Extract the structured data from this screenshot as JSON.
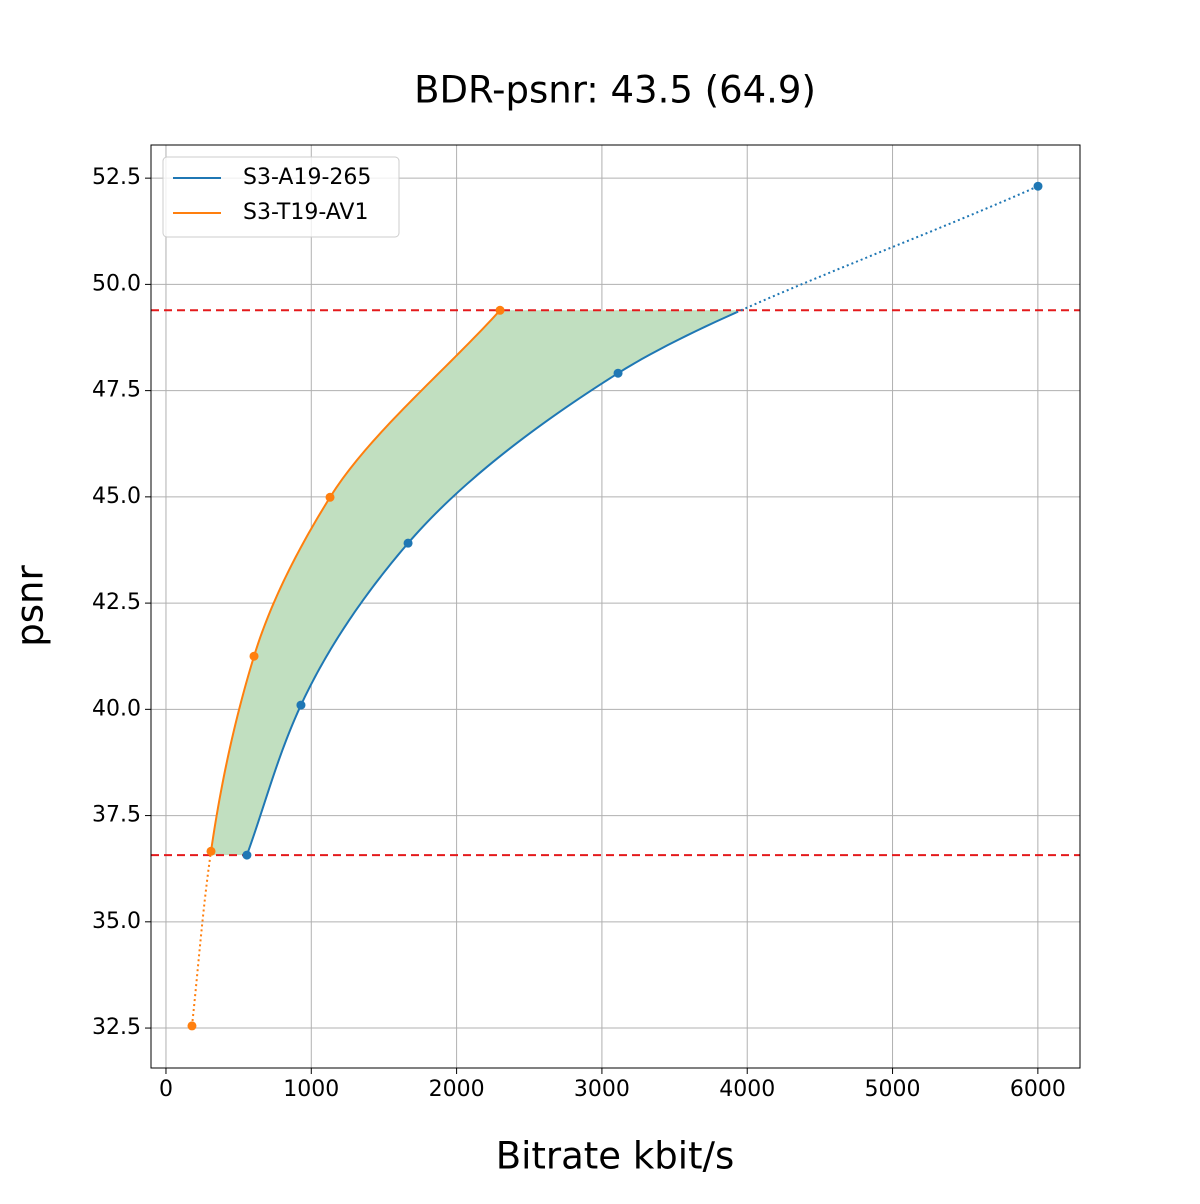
{
  "chart_data": {
    "type": "line",
    "title": "BDR-psnr: 43.5 (64.9)",
    "x_label": "Bitrate kbit/s",
    "y_label": "psnr",
    "series": [
      {
        "name": "S3-A19-265",
        "color": "#1f77b4",
        "x": [
          557,
          929,
          1666,
          3111,
          6001
        ],
        "values": [
          36.57,
          40.1,
          43.91,
          47.91,
          52.31
        ]
      },
      {
        "name": "S3-T19-AV1",
        "color": "#ff7f0e",
        "x": [
          179,
          310,
          606,
          1129,
          2299
        ],
        "values": [
          32.55,
          36.66,
          41.25,
          44.99,
          49.39
        ]
      }
    ],
    "xlim": [
      -103,
      6290
    ],
    "ylim": [
      31.56,
      53.28
    ],
    "xticks": [
      0,
      1000,
      2000,
      3000,
      4000,
      5000,
      6000
    ],
    "yticks": [
      32.5,
      {
        "value": 35,
        "label": "35.0"
      },
      37.5,
      {
        "value": 40,
        "label": "40.0"
      },
      42.5,
      {
        "value": 45,
        "label": "45.0"
      },
      47.5,
      {
        "value": 50,
        "label": "50.0"
      },
      52.5
    ],
    "grid": true,
    "legend": "upper left",
    "fill_color": "#c1dfc0",
    "bound_color": "#e41a1c"
  }
}
